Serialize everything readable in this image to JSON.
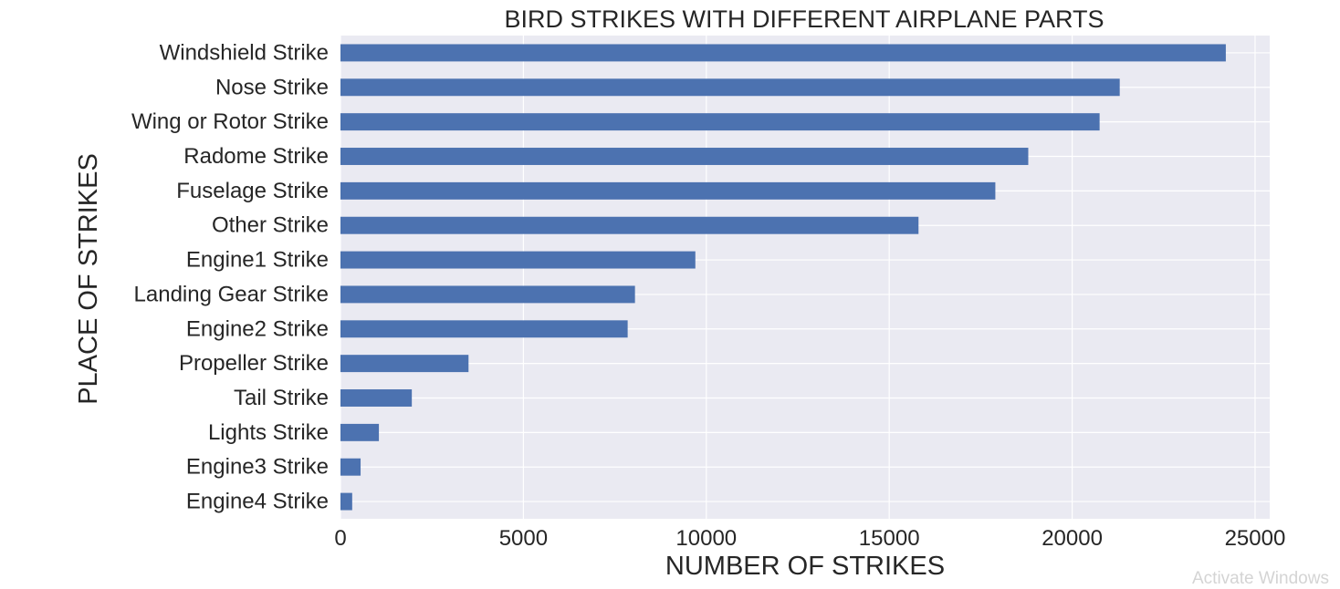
{
  "chart_data": {
    "type": "bar",
    "orientation": "horizontal",
    "title": "BIRD STRIKES WITH DIFFERENT AIRPLANE PARTS",
    "xlabel": "NUMBER OF STRIKES",
    "ylabel": "PLACE OF STRIKES",
    "categories": [
      "Windshield Strike",
      "Nose Strike",
      "Wing or Rotor Strike",
      "Radome Strike",
      "Fuselage Strike",
      "Other Strike",
      "Engine1 Strike",
      "Landing Gear Strike",
      "Engine2 Strike",
      "Propeller Strike",
      "Tail Strike",
      "Lights Strike",
      "Engine3 Strike",
      "Engine4 Strike"
    ],
    "values": [
      24200,
      21300,
      20750,
      18800,
      17900,
      15800,
      9700,
      8050,
      7850,
      3500,
      1950,
      1050,
      550,
      320
    ],
    "xticks": [
      0,
      5000,
      10000,
      15000,
      20000,
      25000
    ],
    "xtick_labels": [
      "0",
      "5000",
      "10000",
      "15000",
      "20000",
      "25000"
    ],
    "xlim": [
      0,
      25400
    ],
    "grid": true,
    "bar_color": "#4c72b0",
    "background_color": "#eaeaf2",
    "grid_color": "#ffffff"
  },
  "watermark": {
    "text": "Activate Windows"
  }
}
